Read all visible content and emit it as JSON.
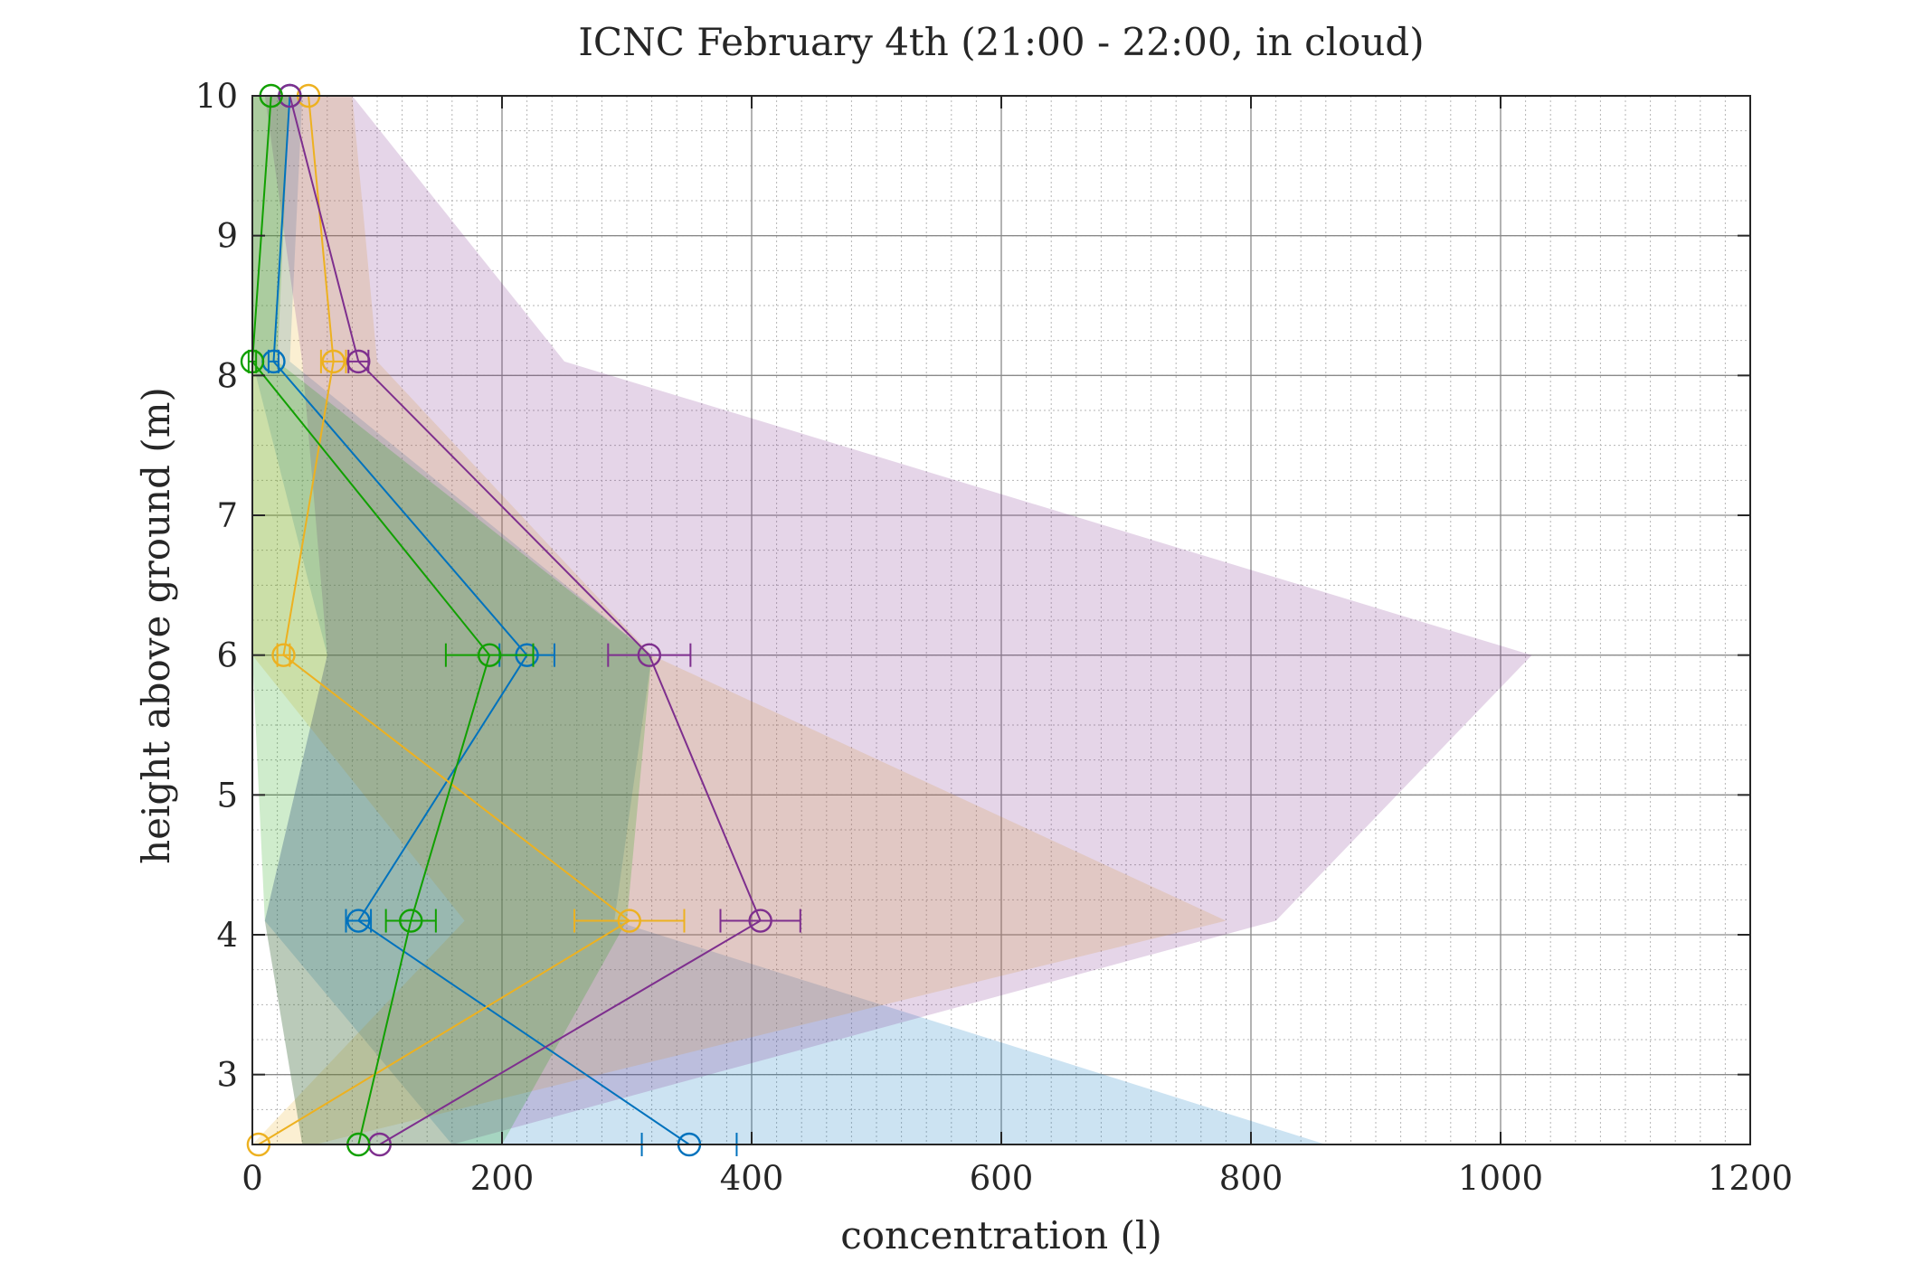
{
  "chart_data": {
    "type": "line",
    "title": "ICNC February 4th (21:00 - 22:00, in cloud)",
    "xlabel": "concentration (l)",
    "ylabel": "height above ground (m)",
    "xlim": [
      0,
      1200
    ],
    "ylim": [
      2.5,
      10
    ],
    "xticks": [
      0,
      200,
      400,
      600,
      800,
      1000,
      1200
    ],
    "yticks": [
      3,
      4,
      5,
      6,
      7,
      8,
      9,
      10
    ],
    "grid": true,
    "minor_grid": true,
    "legend": "none",
    "series": [
      {
        "color": "#0072BD",
        "points": [
          [
            30,
            10
          ],
          [
            17,
            8.1
          ],
          [
            220,
            6
          ],
          [
            85,
            4.1
          ],
          [
            350,
            2.5
          ]
        ],
        "xerr": [
          0,
          4,
          22,
          10,
          38
        ],
        "band": {
          "left": [
            [
              0,
              10
            ],
            [
              0,
              8.1
            ],
            [
              60,
              6
            ],
            [
              10,
              4.1
            ],
            [
              160,
              2.5
            ]
          ],
          "right": [
            [
              40,
              10
            ],
            [
              30,
              8.1
            ],
            [
              320,
              6
            ],
            [
              290,
              4.1
            ],
            [
              860,
              2.5
            ]
          ]
        }
      },
      {
        "color": "#EDB120",
        "points": [
          [
            45,
            10
          ],
          [
            65,
            8.1
          ],
          [
            25,
            6
          ],
          [
            302,
            4.1
          ],
          [
            5,
            2.5
          ]
        ],
        "xerr": [
          0,
          10,
          5,
          44,
          0
        ],
        "band": {
          "left": [
            [
              0,
              10
            ],
            [
              0,
              8.1
            ],
            [
              0,
              6
            ],
            [
              170,
              4.1
            ],
            [
              0,
              2.5
            ]
          ],
          "right": [
            [
              80,
              10
            ],
            [
              100,
              8.1
            ],
            [
              320,
              6
            ],
            [
              780,
              4.1
            ],
            [
              50,
              2.5
            ]
          ]
        }
      },
      {
        "color": "#7E2F8E",
        "points": [
          [
            30,
            10
          ],
          [
            85,
            8.1
          ],
          [
            318,
            6
          ],
          [
            407,
            4.1
          ],
          [
            102,
            2.5
          ]
        ],
        "xerr": [
          0,
          8,
          33,
          32,
          0
        ],
        "band": {
          "left": [
            [
              10,
              10
            ],
            [
              40,
              8.1
            ],
            [
              60,
              6
            ],
            [
              10,
              4.1
            ],
            [
              40,
              2.5
            ]
          ],
          "right": [
            [
              80,
              10
            ],
            [
              250,
              8.1
            ],
            [
              1025,
              6
            ],
            [
              820,
              4.1
            ],
            [
              160,
              2.5
            ]
          ]
        }
      },
      {
        "color": "#11A000",
        "points": [
          [
            15,
            10
          ],
          [
            0,
            8.1
          ],
          [
            190,
            6
          ],
          [
            127,
            4.1
          ],
          [
            85,
            2.5
          ]
        ],
        "xerr": [
          0,
          3,
          35,
          20,
          0
        ],
        "band": {
          "left": [
            [
              0,
              10
            ],
            [
              0,
              8.1
            ],
            [
              0,
              6
            ],
            [
              10,
              4.1
            ],
            [
              40,
              2.5
            ]
          ],
          "right": [
            [
              30,
              10
            ],
            [
              20,
              8.1
            ],
            [
              320,
              6
            ],
            [
              300,
              4.1
            ],
            [
              200,
              2.5
            ]
          ]
        }
      }
    ]
  }
}
